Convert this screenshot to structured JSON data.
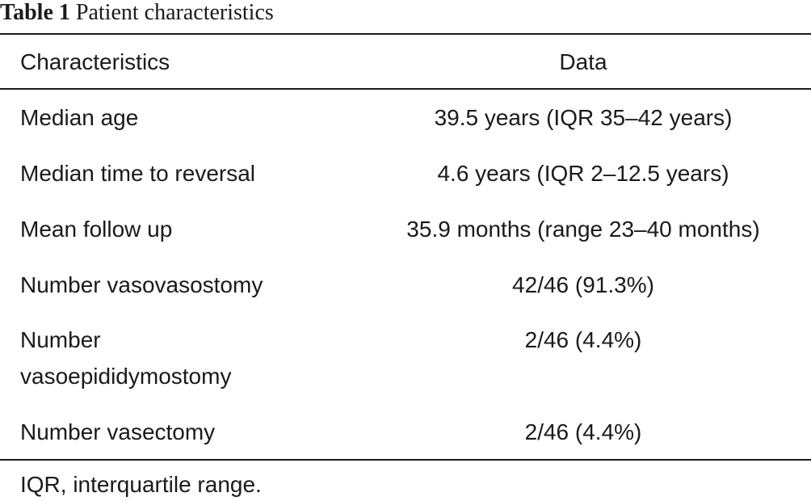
{
  "caption": {
    "label": "Table 1",
    "title": "Patient characteristics"
  },
  "table": {
    "headers": [
      "Characteristics",
      "Data"
    ],
    "rows": [
      [
        "Median age",
        "39.5 years (IQR 35–42 years)"
      ],
      [
        "Median time to reversal",
        "4.6 years (IQR 2–12.5 years)"
      ],
      [
        "Mean follow up",
        "35.9 months (range 23–40 months)"
      ],
      [
        "Number vasovasostomy",
        "42/46 (91.3%)"
      ],
      [
        "Number vasoepididymostomy",
        "2/46 (4.4%)"
      ],
      [
        "Number vasectomy",
        "2/46 (4.4%)"
      ]
    ]
  },
  "footnote": "IQR, interquartile range."
}
